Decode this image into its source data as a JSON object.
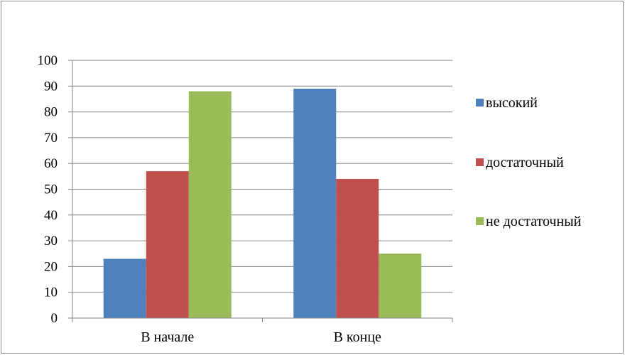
{
  "chart_data": {
    "type": "bar",
    "categories": [
      "В начале",
      "В конце"
    ],
    "series": [
      {
        "name": "высокий",
        "values": [
          23,
          89
        ],
        "color": "#4f81bd"
      },
      {
        "name": "достаточный",
        "values": [
          57,
          54
        ],
        "color": "#c0504d"
      },
      {
        "name": "не достаточный",
        "values": [
          88,
          25
        ],
        "color": "#9bbb59"
      }
    ],
    "ylim": [
      0,
      100
    ],
    "yticks": [
      "0",
      "10",
      "20",
      "30",
      "40",
      "50",
      "60",
      "70",
      "80",
      "90",
      "100"
    ],
    "grid": true,
    "legend_position": "right"
  }
}
